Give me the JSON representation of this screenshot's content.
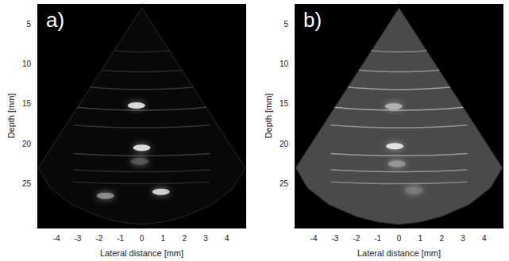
{
  "chart_data": [
    {
      "type": "scatter",
      "title": "a)",
      "x_label": "Lateral distance [mm]",
      "y_label": "Depth [mm]",
      "xlim": [
        -4.9,
        4.9
      ],
      "xticks": [
        -4,
        -3,
        -2,
        -1,
        0,
        1,
        2,
        3,
        4
      ],
      "ylim": [
        2.5,
        30.5
      ],
      "yticks": [
        5,
        10,
        15,
        20,
        25
      ],
      "color": "#ffffff",
      "fan_color": "#080808",
      "fan": [
        [
          0,
          3
        ],
        [
          -4.85,
          23
        ],
        [
          -4.3,
          25.5
        ],
        [
          -3.3,
          27.6
        ],
        [
          -2,
          29.1
        ],
        [
          -1,
          29.8
        ],
        [
          0,
          30.1
        ],
        [
          1,
          29.8
        ],
        [
          2,
          29.1
        ],
        [
          3.3,
          27.6
        ],
        [
          4.3,
          25.5
        ],
        [
          4.85,
          23
        ]
      ],
      "points": {
        "x": [
          -0.25,
          0.0,
          0.9,
          -1.7,
          -0.1
        ],
        "y": [
          15.2,
          20.5,
          26.0,
          26.5,
          22.2
        ],
        "intensity": [
          1,
          1,
          0.95,
          0.6,
          0.3
        ]
      },
      "arcs": {
        "depth": [
          8.5,
          11,
          13.2,
          15.8,
          18,
          21.5,
          23.5,
          25
        ],
        "intensity": [
          0.12,
          0.15,
          0.18,
          0.22,
          0.18,
          0.2,
          0.15,
          0.12
        ]
      }
    },
    {
      "type": "scatter",
      "title": "b)",
      "x_label": "Lateral distance [mm]",
      "y_label": "Depth [mm]",
      "xlim": [
        -4.9,
        4.9
      ],
      "xticks": [
        -4,
        -3,
        -2,
        -1,
        0,
        1,
        2,
        3,
        4
      ],
      "ylim": [
        2.5,
        30.5
      ],
      "yticks": [
        5,
        10,
        15,
        20,
        25
      ],
      "color": "#ffffff",
      "fan_color": "#4a4a4a",
      "fan": [
        [
          0,
          3
        ],
        [
          -4.85,
          23
        ],
        [
          -4.3,
          25.5
        ],
        [
          -3.3,
          27.6
        ],
        [
          -2,
          29.1
        ],
        [
          -1,
          29.8
        ],
        [
          0,
          30.1
        ],
        [
          1,
          29.8
        ],
        [
          2,
          29.1
        ],
        [
          3.3,
          27.6
        ],
        [
          4.3,
          25.5
        ],
        [
          4.85,
          23
        ]
      ],
      "points": {
        "x": [
          -0.25,
          -0.2,
          -0.1,
          0.7
        ],
        "y": [
          15.3,
          20.3,
          22.5,
          25.8
        ],
        "intensity": [
          0.75,
          1,
          0.6,
          0.45
        ]
      },
      "arcs": {
        "depth": [
          8.5,
          11,
          13.2,
          15.8,
          18,
          21.5,
          23.5,
          25
        ],
        "intensity": [
          0.35,
          0.4,
          0.45,
          0.5,
          0.4,
          0.45,
          0.4,
          0.35
        ]
      }
    }
  ]
}
